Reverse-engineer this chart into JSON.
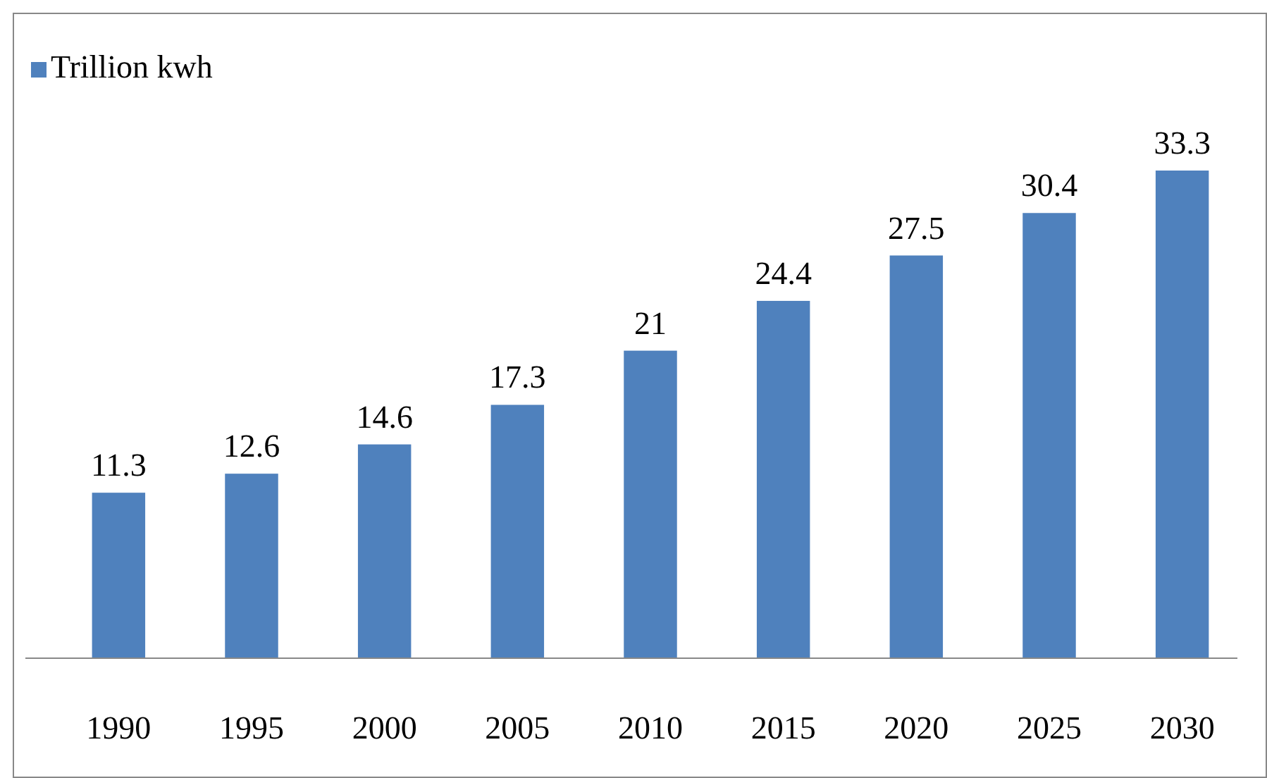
{
  "chart_data": {
    "type": "bar",
    "categories": [
      "1990",
      "1995",
      "2000",
      "2005",
      "2010",
      "2015",
      "2020",
      "2025",
      "2030"
    ],
    "series": [
      {
        "name": "Trillion kwh",
        "color": "#4f81bd",
        "values": [
          11.3,
          12.6,
          14.6,
          17.3,
          21,
          24.4,
          27.5,
          30.4,
          33.3
        ]
      }
    ],
    "data_labels": true,
    "legend": "top left"
  }
}
